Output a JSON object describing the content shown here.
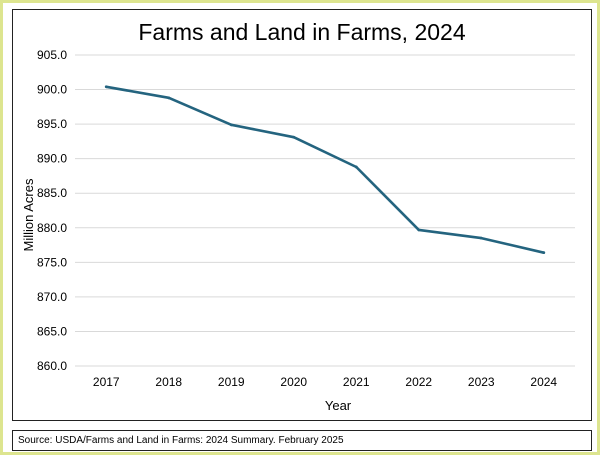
{
  "chart_data": {
    "type": "line",
    "title": "Farms and Land in Farms, 2024",
    "xlabel": "Year",
    "ylabel": "Million Acres",
    "categories": [
      "2017",
      "2018",
      "2019",
      "2020",
      "2021",
      "2022",
      "2023",
      "2024"
    ],
    "series": [
      {
        "name": "Land in Farms",
        "values": [
          900.4,
          898.8,
          894.9,
          893.1,
          888.8,
          879.7,
          878.5,
          876.4
        ],
        "color": "#24647f"
      }
    ],
    "ylim": [
      860.0,
      905.0
    ],
    "yticks": [
      "860.0",
      "865.0",
      "870.0",
      "875.0",
      "880.0",
      "885.0",
      "890.0",
      "895.0",
      "900.0",
      "905.0"
    ],
    "grid": true,
    "legend": "none"
  },
  "source": "Source: USDA/Farms and Land in Farms: 2024 Summary. February 2025"
}
